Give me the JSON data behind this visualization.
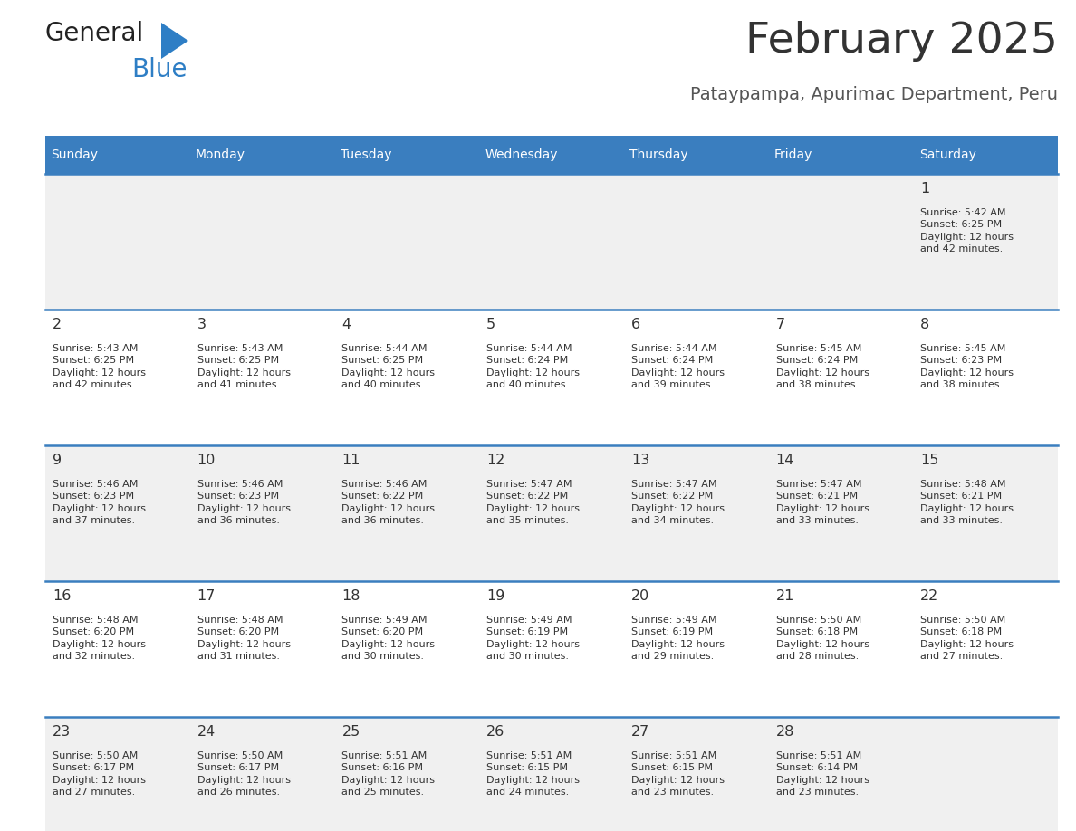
{
  "title": "February 2025",
  "subtitle": "Pataypampa, Apurimac Department, Peru",
  "days_of_week": [
    "Sunday",
    "Monday",
    "Tuesday",
    "Wednesday",
    "Thursday",
    "Friday",
    "Saturday"
  ],
  "header_bg": "#3a7ebf",
  "header_text": "#ffffff",
  "row_bg_odd": "#f0f0f0",
  "row_bg_even": "#ffffff",
  "cell_text": "#333333",
  "day_num_color": "#333333",
  "border_color": "#3a7ebf",
  "title_color": "#333333",
  "subtitle_color": "#555555",
  "logo_general_color": "#222222",
  "logo_blue_color": "#2e7ec5",
  "calendar_data": [
    {
      "day": 1,
      "col": 6,
      "row": 0,
      "sunrise": "5:42 AM",
      "sunset": "6:25 PM",
      "daylight": "12 hours and 42 minutes."
    },
    {
      "day": 2,
      "col": 0,
      "row": 1,
      "sunrise": "5:43 AM",
      "sunset": "6:25 PM",
      "daylight": "12 hours and 42 minutes."
    },
    {
      "day": 3,
      "col": 1,
      "row": 1,
      "sunrise": "5:43 AM",
      "sunset": "6:25 PM",
      "daylight": "12 hours and 41 minutes."
    },
    {
      "day": 4,
      "col": 2,
      "row": 1,
      "sunrise": "5:44 AM",
      "sunset": "6:25 PM",
      "daylight": "12 hours and 40 minutes."
    },
    {
      "day": 5,
      "col": 3,
      "row": 1,
      "sunrise": "5:44 AM",
      "sunset": "6:24 PM",
      "daylight": "12 hours and 40 minutes."
    },
    {
      "day": 6,
      "col": 4,
      "row": 1,
      "sunrise": "5:44 AM",
      "sunset": "6:24 PM",
      "daylight": "12 hours and 39 minutes."
    },
    {
      "day": 7,
      "col": 5,
      "row": 1,
      "sunrise": "5:45 AM",
      "sunset": "6:24 PM",
      "daylight": "12 hours and 38 minutes."
    },
    {
      "day": 8,
      "col": 6,
      "row": 1,
      "sunrise": "5:45 AM",
      "sunset": "6:23 PM",
      "daylight": "12 hours and 38 minutes."
    },
    {
      "day": 9,
      "col": 0,
      "row": 2,
      "sunrise": "5:46 AM",
      "sunset": "6:23 PM",
      "daylight": "12 hours and 37 minutes."
    },
    {
      "day": 10,
      "col": 1,
      "row": 2,
      "sunrise": "5:46 AM",
      "sunset": "6:23 PM",
      "daylight": "12 hours and 36 minutes."
    },
    {
      "day": 11,
      "col": 2,
      "row": 2,
      "sunrise": "5:46 AM",
      "sunset": "6:22 PM",
      "daylight": "12 hours and 36 minutes."
    },
    {
      "day": 12,
      "col": 3,
      "row": 2,
      "sunrise": "5:47 AM",
      "sunset": "6:22 PM",
      "daylight": "12 hours and 35 minutes."
    },
    {
      "day": 13,
      "col": 4,
      "row": 2,
      "sunrise": "5:47 AM",
      "sunset": "6:22 PM",
      "daylight": "12 hours and 34 minutes."
    },
    {
      "day": 14,
      "col": 5,
      "row": 2,
      "sunrise": "5:47 AM",
      "sunset": "6:21 PM",
      "daylight": "12 hours and 33 minutes."
    },
    {
      "day": 15,
      "col": 6,
      "row": 2,
      "sunrise": "5:48 AM",
      "sunset": "6:21 PM",
      "daylight": "12 hours and 33 minutes."
    },
    {
      "day": 16,
      "col": 0,
      "row": 3,
      "sunrise": "5:48 AM",
      "sunset": "6:20 PM",
      "daylight": "12 hours and 32 minutes."
    },
    {
      "day": 17,
      "col": 1,
      "row": 3,
      "sunrise": "5:48 AM",
      "sunset": "6:20 PM",
      "daylight": "12 hours and 31 minutes."
    },
    {
      "day": 18,
      "col": 2,
      "row": 3,
      "sunrise": "5:49 AM",
      "sunset": "6:20 PM",
      "daylight": "12 hours and 30 minutes."
    },
    {
      "day": 19,
      "col": 3,
      "row": 3,
      "sunrise": "5:49 AM",
      "sunset": "6:19 PM",
      "daylight": "12 hours and 30 minutes."
    },
    {
      "day": 20,
      "col": 4,
      "row": 3,
      "sunrise": "5:49 AM",
      "sunset": "6:19 PM",
      "daylight": "12 hours and 29 minutes."
    },
    {
      "day": 21,
      "col": 5,
      "row": 3,
      "sunrise": "5:50 AM",
      "sunset": "6:18 PM",
      "daylight": "12 hours and 28 minutes."
    },
    {
      "day": 22,
      "col": 6,
      "row": 3,
      "sunrise": "5:50 AM",
      "sunset": "6:18 PM",
      "daylight": "12 hours and 27 minutes."
    },
    {
      "day": 23,
      "col": 0,
      "row": 4,
      "sunrise": "5:50 AM",
      "sunset": "6:17 PM",
      "daylight": "12 hours and 27 minutes."
    },
    {
      "day": 24,
      "col": 1,
      "row": 4,
      "sunrise": "5:50 AM",
      "sunset": "6:17 PM",
      "daylight": "12 hours and 26 minutes."
    },
    {
      "day": 25,
      "col": 2,
      "row": 4,
      "sunrise": "5:51 AM",
      "sunset": "6:16 PM",
      "daylight": "12 hours and 25 minutes."
    },
    {
      "day": 26,
      "col": 3,
      "row": 4,
      "sunrise": "5:51 AM",
      "sunset": "6:15 PM",
      "daylight": "12 hours and 24 minutes."
    },
    {
      "day": 27,
      "col": 4,
      "row": 4,
      "sunrise": "5:51 AM",
      "sunset": "6:15 PM",
      "daylight": "12 hours and 23 minutes."
    },
    {
      "day": 28,
      "col": 5,
      "row": 4,
      "sunrise": "5:51 AM",
      "sunset": "6:14 PM",
      "daylight": "12 hours and 23 minutes."
    }
  ]
}
